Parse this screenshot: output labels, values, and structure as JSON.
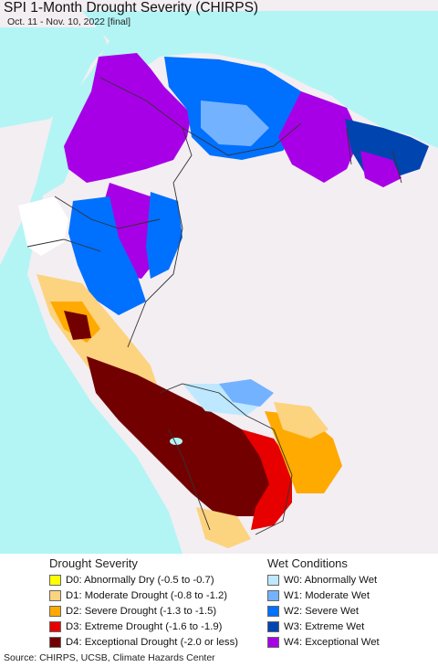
{
  "title": "SPI 1-Month Drought Severity (CHIRPS)",
  "subtitle": "Oct. 11 - Nov. 10, 2022 [final]",
  "colors": {
    "ocean": "#b3f5f5",
    "land_no_data": "#f3eef2",
    "border": "#333333"
  },
  "legend": {
    "drought_heading": "Drought Severity",
    "wet_heading": "Wet Conditions",
    "drought_items": [
      {
        "code": "D0",
        "label": "D0: Abnormally Dry (-0.5 to -0.7)",
        "color": "#ffff00"
      },
      {
        "code": "D1",
        "label": "D1: Moderate Drought (-0.8 to -1.2)",
        "color": "#fcd37f"
      },
      {
        "code": "D2",
        "label": "D2: Severe Drought (-1.3 to -1.5)",
        "color": "#ffaa00"
      },
      {
        "code": "D3",
        "label": "D3: Extreme Drought (-1.6 to -1.9)",
        "color": "#e60000"
      },
      {
        "code": "D4",
        "label": "D4: Exceptional Drought (-2.0 or less)",
        "color": "#730000"
      }
    ],
    "wet_items": [
      {
        "code": "W0",
        "label": "W0: Abnormally Wet",
        "color": "#bee8ff"
      },
      {
        "code": "W1",
        "label": "W1: Moderate Wet",
        "color": "#73b2ff"
      },
      {
        "code": "W2",
        "label": "W2: Severe Wet",
        "color": "#0070ff"
      },
      {
        "code": "W3",
        "label": "W3: Extreme Wet",
        "color": "#0044b0"
      },
      {
        "code": "W4",
        "label": "W4: Exceptional Wet",
        "color": "#a800e6"
      }
    ]
  },
  "source": "Source: CHIRPS, UCSB, Climate Hazards Center"
}
